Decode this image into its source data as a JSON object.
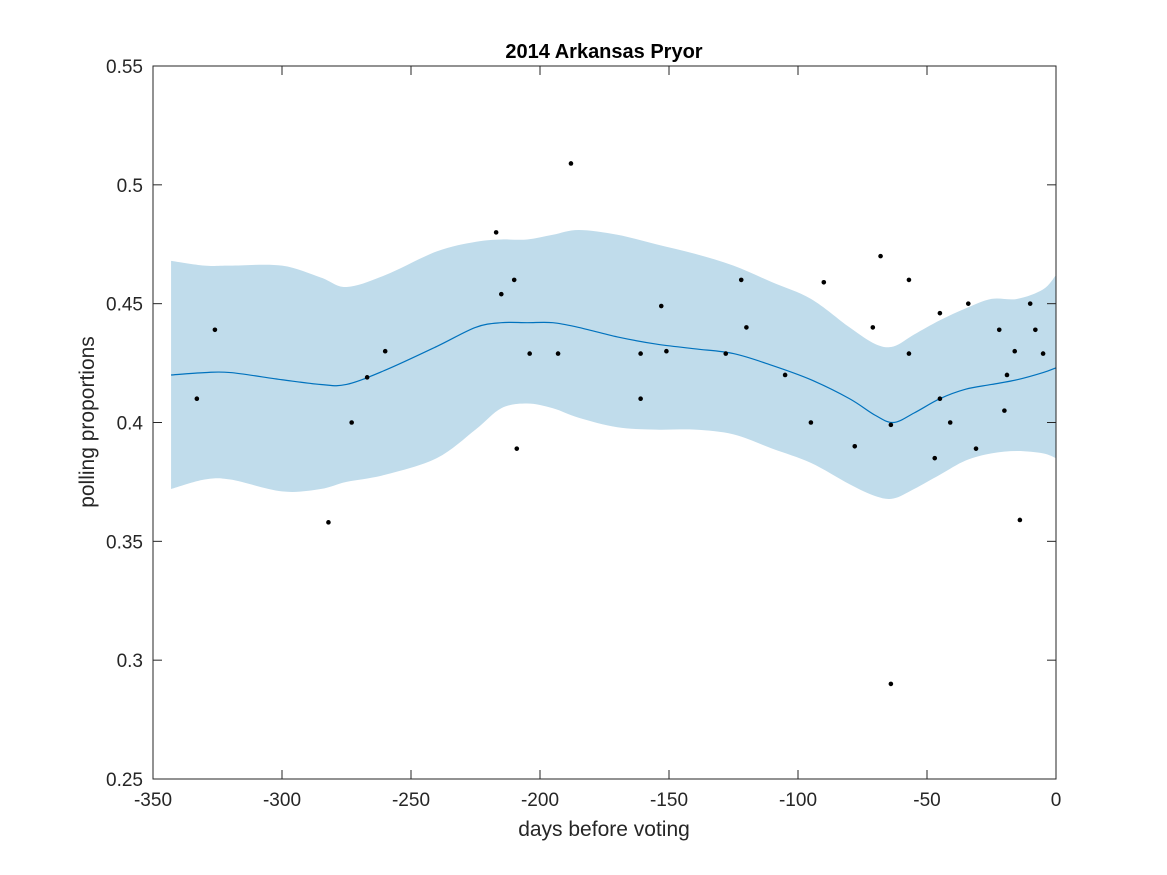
{
  "chart_data": {
    "type": "scatter",
    "title": "2014 Arkansas Pryor",
    "xlabel": "days before voting",
    "ylabel": "polling proportions",
    "xlim": [
      -350,
      0
    ],
    "ylim": [
      0.25,
      0.55
    ],
    "xticks": [
      -350,
      -300,
      -250,
      -200,
      -150,
      -100,
      -50,
      0
    ],
    "yticks": [
      0.25,
      0.3,
      0.35,
      0.4,
      0.45,
      0.5,
      0.55
    ],
    "xtick_labels": [
      "-350",
      "-300",
      "-250",
      "-200",
      "-150",
      "-100",
      "-50",
      "0"
    ],
    "ytick_labels": [
      "0.25",
      "0.3",
      "0.35",
      "0.4",
      "0.45",
      "0.5",
      "0.55"
    ],
    "grid": false,
    "legend": null,
    "colors": {
      "band": "#c0dceb",
      "trend": "#0072bd",
      "points": "#000000",
      "axes": "#262626"
    },
    "points": [
      {
        "x": -333,
        "y": 0.41
      },
      {
        "x": -326,
        "y": 0.439
      },
      {
        "x": -282,
        "y": 0.358
      },
      {
        "x": -273,
        "y": 0.4
      },
      {
        "x": -267,
        "y": 0.419
      },
      {
        "x": -260,
        "y": 0.43
      },
      {
        "x": -217,
        "y": 0.48
      },
      {
        "x": -215,
        "y": 0.454
      },
      {
        "x": -210,
        "y": 0.46
      },
      {
        "x": -209,
        "y": 0.389
      },
      {
        "x": -204,
        "y": 0.429
      },
      {
        "x": -193,
        "y": 0.429
      },
      {
        "x": -188,
        "y": 0.509
      },
      {
        "x": -161,
        "y": 0.429
      },
      {
        "x": -161,
        "y": 0.41
      },
      {
        "x": -153,
        "y": 0.449
      },
      {
        "x": -151,
        "y": 0.43
      },
      {
        "x": -128,
        "y": 0.429
      },
      {
        "x": -122,
        "y": 0.46
      },
      {
        "x": -120,
        "y": 0.44
      },
      {
        "x": -105,
        "y": 0.42
      },
      {
        "x": -95,
        "y": 0.4
      },
      {
        "x": -90,
        "y": 0.459
      },
      {
        "x": -78,
        "y": 0.39
      },
      {
        "x": -71,
        "y": 0.44
      },
      {
        "x": -68,
        "y": 0.47
      },
      {
        "x": -64,
        "y": 0.399
      },
      {
        "x": -64,
        "y": 0.29
      },
      {
        "x": -57,
        "y": 0.46
      },
      {
        "x": -57,
        "y": 0.429
      },
      {
        "x": -47,
        "y": 0.385
      },
      {
        "x": -45,
        "y": 0.446
      },
      {
        "x": -45,
        "y": 0.41
      },
      {
        "x": -41,
        "y": 0.4
      },
      {
        "x": -34,
        "y": 0.45
      },
      {
        "x": -31,
        "y": 0.389
      },
      {
        "x": -22,
        "y": 0.439
      },
      {
        "x": -20,
        "y": 0.405
      },
      {
        "x": -19,
        "y": 0.42
      },
      {
        "x": -16,
        "y": 0.43
      },
      {
        "x": -14,
        "y": 0.359
      },
      {
        "x": -10,
        "y": 0.45
      },
      {
        "x": -8,
        "y": 0.439
      },
      {
        "x": -5,
        "y": 0.429
      }
    ],
    "trend": {
      "x": [
        -343,
        -330,
        -320,
        -300,
        -285,
        -275,
        -260,
        -240,
        -225,
        -215,
        -205,
        -195,
        -185,
        -170,
        -155,
        -140,
        -125,
        -110,
        -95,
        -80,
        -70,
        -63,
        -55,
        -45,
        -35,
        -25,
        -15,
        -5,
        0
      ],
      "y": [
        0.42,
        0.421,
        0.421,
        0.418,
        0.416,
        0.416,
        0.422,
        0.432,
        0.44,
        0.442,
        0.442,
        0.442,
        0.44,
        0.436,
        0.433,
        0.431,
        0.429,
        0.424,
        0.418,
        0.41,
        0.403,
        0.4,
        0.404,
        0.41,
        0.414,
        0.416,
        0.418,
        0.421,
        0.423
      ]
    },
    "band": {
      "x": [
        -343,
        -330,
        -320,
        -300,
        -285,
        -275,
        -260,
        -240,
        -225,
        -215,
        -205,
        -195,
        -185,
        -170,
        -155,
        -140,
        -125,
        -110,
        -95,
        -80,
        -70,
        -63,
        -55,
        -45,
        -35,
        -25,
        -15,
        -5,
        0
      ],
      "upper": [
        0.468,
        0.466,
        0.466,
        0.466,
        0.461,
        0.457,
        0.462,
        0.472,
        0.476,
        0.477,
        0.477,
        0.479,
        0.481,
        0.479,
        0.475,
        0.471,
        0.466,
        0.459,
        0.452,
        0.44,
        0.433,
        0.432,
        0.437,
        0.443,
        0.448,
        0.452,
        0.452,
        0.456,
        0.462
      ],
      "lower": [
        0.372,
        0.376,
        0.376,
        0.371,
        0.372,
        0.375,
        0.378,
        0.385,
        0.397,
        0.406,
        0.408,
        0.406,
        0.402,
        0.398,
        0.397,
        0.397,
        0.395,
        0.389,
        0.383,
        0.374,
        0.369,
        0.368,
        0.372,
        0.378,
        0.384,
        0.387,
        0.388,
        0.387,
        0.385
      ]
    }
  }
}
